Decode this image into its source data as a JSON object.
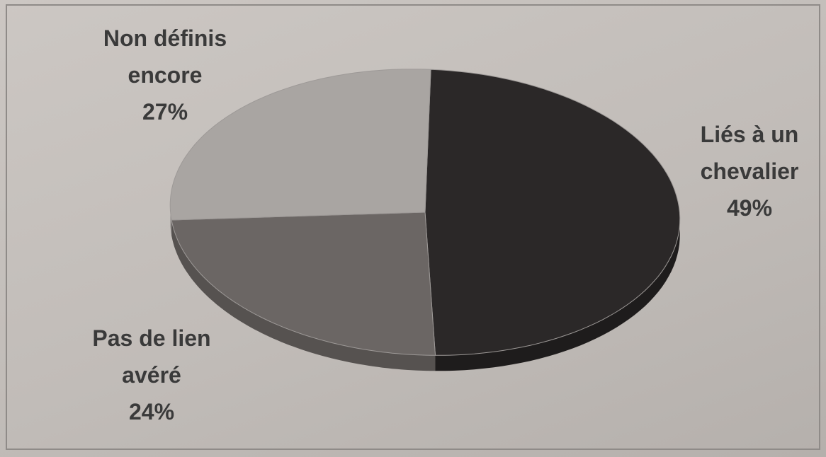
{
  "chart_data": {
    "type": "pie",
    "style": "3d",
    "legend": "none",
    "slices": [
      {
        "label_lines": [
          "Liés à un",
          "chevalier"
        ],
        "value": 49,
        "value_label": "49%",
        "top_color": "#2b2828",
        "side_color": "#1e1c1c"
      },
      {
        "label_lines": [
          "Pas de lien",
          "avéré"
        ],
        "value": 24,
        "value_label": "24%",
        "top_color": "#6b6664",
        "side_color": "#565250"
      },
      {
        "label_lines": [
          "Non définis",
          "encore"
        ],
        "value": 27,
        "value_label": "27%",
        "top_color": "#a9a5a2",
        "side_color": "#8c8886"
      }
    ]
  }
}
